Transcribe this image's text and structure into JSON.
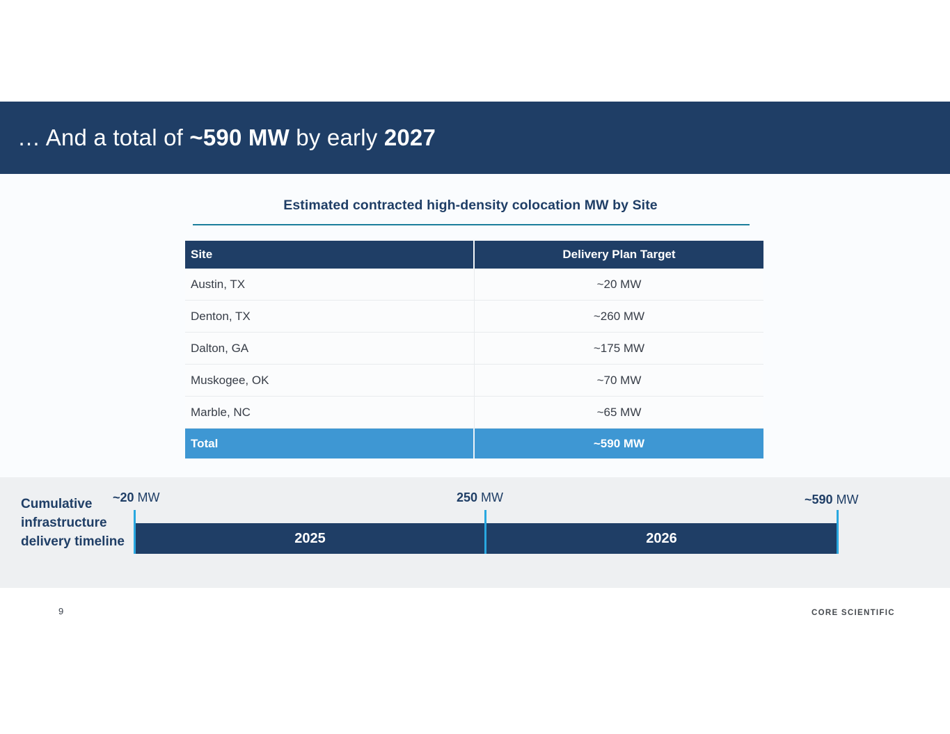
{
  "header": {
    "title_prefix": "… And a total of ",
    "title_highlight": "~590 MW",
    "title_middle": " by early ",
    "title_year": "2027"
  },
  "table": {
    "title": "Estimated contracted high-density colocation MW by Site",
    "columns": {
      "site": "Site",
      "target": "Delivery Plan Target"
    },
    "rows": [
      {
        "site": "Austin, TX",
        "target": "~20 MW"
      },
      {
        "site": "Denton, TX",
        "target": "~260 MW"
      },
      {
        "site": "Dalton, GA",
        "target": "~175 MW"
      },
      {
        "site": "Muskogee, OK",
        "target": "~70 MW"
      },
      {
        "site": "Marble, NC",
        "target": "~65 MW"
      }
    ],
    "total": {
      "label": "Total",
      "value": "~590 MW"
    }
  },
  "timeline": {
    "label": "Cumulative infrastructure delivery timeline",
    "markers": [
      {
        "value": "~20",
        "unit": " MW"
      },
      {
        "value": "250",
        "unit": " MW"
      },
      {
        "value": "~590",
        "unit": " MW"
      }
    ],
    "bars": [
      {
        "year": "2025"
      },
      {
        "year": "2026"
      }
    ]
  },
  "footer": {
    "page_number": "9",
    "logo": "CORE SCIENTIFIC"
  },
  "colors": {
    "navy": "#1f3e66",
    "total_blue": "#3e97d3",
    "tick_blue": "#29a8e0",
    "rule_teal": "#1b7e9b",
    "band_gray": "#eef0f2"
  }
}
